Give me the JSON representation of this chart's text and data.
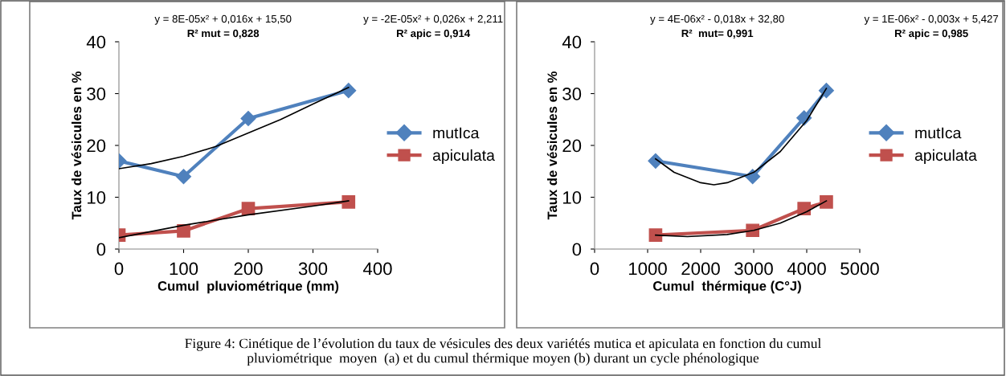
{
  "chart_data": [
    {
      "type": "line",
      "xlabel": "Cumul  pluviométrique (mm)",
      "ylabel": "Taux de vésicules en %",
      "xlim": [
        0,
        400
      ],
      "xticks": [
        0,
        100,
        200,
        300,
        400
      ],
      "ylim": [
        0,
        40
      ],
      "yticks": [
        0,
        10,
        20,
        30,
        40
      ],
      "grid": false,
      "legend": "right",
      "series": [
        {
          "name": "mutIca",
          "color": "#4f81bd",
          "marker": "diamond",
          "x": [
            0,
            100,
            200,
            355
          ],
          "values": [
            17,
            14,
            25.2,
            30.6
          ]
        },
        {
          "name": "apiculata",
          "color": "#c0504d",
          "marker": "square",
          "x": [
            0,
            100,
            200,
            355
          ],
          "values": [
            2.7,
            3.5,
            7.8,
            9.1
          ]
        },
        {
          "type": "line",
          "color": "#000000",
          "marker": "none",
          "x": [
            0,
            50,
            100,
            150,
            200,
            250,
            300,
            355
          ],
          "values": [
            15.5,
            16.5,
            17.9,
            19.8,
            22.4,
            25,
            28,
            31.2
          ]
        },
        {
          "type": "line",
          "color": "#000000",
          "marker": "none",
          "x": [
            0,
            100,
            200,
            300,
            355
          ],
          "values": [
            2.2,
            4.6,
            6.6,
            8.3,
            9.3
          ]
        }
      ],
      "annotations": [
        "y = 8E-05x² + 0,016x + 15,50",
        "R² mut = 0,828",
        "y = -2E-05x² + 0,026x + 2,211",
        "R² apic = 0,914"
      ]
    },
    {
      "type": "line",
      "xlabel": "Cumul  thérmique (C°J)",
      "ylabel": "Taux de vésicules en %",
      "xlim": [
        0,
        5000
      ],
      "xticks": [
        0,
        1000,
        2000,
        3000,
        4000,
        5000
      ],
      "ylim": [
        0,
        40
      ],
      "yticks": [
        0,
        10,
        20,
        30,
        40
      ],
      "grid": false,
      "legend": "right",
      "series": [
        {
          "name": "mutIca",
          "color": "#4f81bd",
          "marker": "diamond",
          "x": [
            1150,
            2980,
            3950,
            4370
          ],
          "values": [
            17,
            14,
            25.3,
            30.6
          ]
        },
        {
          "name": "apiculata",
          "color": "#c0504d",
          "marker": "square",
          "x": [
            1150,
            2980,
            3950,
            4370
          ],
          "values": [
            2.7,
            3.6,
            7.8,
            9.1
          ]
        },
        {
          "type": "line",
          "color": "#000000",
          "marker": "none",
          "x": [
            1150,
            1500,
            2000,
            2250,
            2500,
            3000,
            3500,
            4000,
            4370
          ],
          "values": [
            17.4,
            14.8,
            12.8,
            12.4,
            12.8,
            14.8,
            18.8,
            24.8,
            31
          ]
        },
        {
          "type": "line",
          "color": "#000000",
          "marker": "none",
          "x": [
            1150,
            1750,
            2500,
            3000,
            3500,
            4000,
            4370
          ],
          "values": [
            2.7,
            2.4,
            2.8,
            3.6,
            5.0,
            7.2,
            9.3
          ]
        }
      ],
      "annotations": [
        "y = 4E-06x² - 0,018x + 32,80",
        "R²  mut= 0,991",
        "y = 1E-06x² - 0,003x + 5,427",
        "R² apic = 0,985",
        "Figure 4: Cinétique de l’évolution du taux de vésicules des deux variétés mutica et apiculata en fonction du cumul\npluviométrique  moyen  (a) et du cumul thérmique moyen (b) durant un cycle phénologique"
      ]
    }
  ]
}
